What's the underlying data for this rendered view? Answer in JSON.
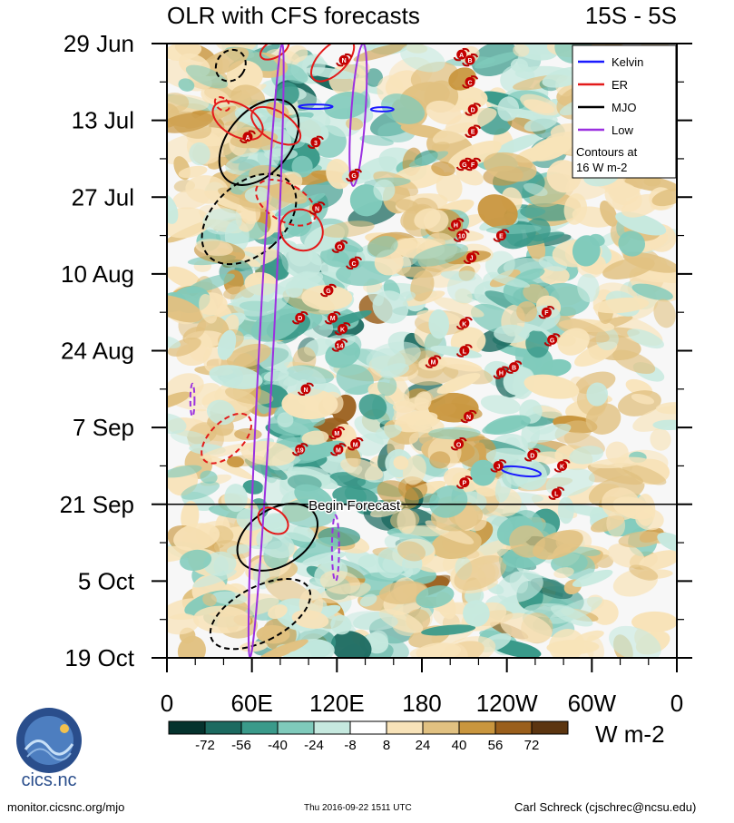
{
  "chart_data": {
    "type": "heatmap",
    "title": "OLR with CFS forecasts",
    "region": "15S - 5S",
    "xlabel": "",
    "ylabel": "",
    "x_ticks": [
      "0",
      "60E",
      "120E",
      "180",
      "120W",
      "60W",
      "0"
    ],
    "x_range_deg_east": [
      0,
      360
    ],
    "y_ticks": [
      "29 Jun",
      "13 Jul",
      "27 Jul",
      "10 Aug",
      "24 Aug",
      "7 Sep",
      "21 Sep",
      "5 Oct",
      "19 Oct"
    ],
    "y_range_days": [
      0,
      112
    ],
    "forecast_start": {
      "label": "Begin Forecast",
      "day": 84
    },
    "colorbar": {
      "unit": "W m-2",
      "tick_labels": [
        "-72",
        "-56",
        "-40",
        "-24",
        "-8",
        "8",
        "24",
        "40",
        "56",
        "72"
      ],
      "bins": [
        -80,
        -72,
        -56,
        -40,
        -24,
        -8,
        8,
        24,
        40,
        56,
        72,
        80
      ],
      "colors": [
        "#05332e",
        "#1c6a60",
        "#3a9a8a",
        "#7fcabb",
        "#c6e9df",
        "#ffffff",
        "#f8e3b9",
        "#e1c181",
        "#c9963e",
        "#9a5f1c",
        "#5c3510"
      ]
    },
    "legend": {
      "position": "top-right",
      "entries": [
        {
          "label": "Kelvin",
          "color": "#1a1aff"
        },
        {
          "label": "ER",
          "color": "#e31a1a"
        },
        {
          "label": "MJO",
          "color": "#000000"
        },
        {
          "label": "Low",
          "color": "#9b30e0"
        }
      ],
      "note_line1": "Contours at",
      "note_line2": "16 W m-2"
    },
    "wave_contours": [
      {
        "type": "MJO",
        "solid": true,
        "center_lon": 65,
        "center_day": 18,
        "rx": 22,
        "ry_days": 9,
        "angle": 40
      },
      {
        "type": "MJO",
        "solid": false,
        "center_lon": 58,
        "center_day": 32,
        "rx": 25,
        "ry_days": 10,
        "angle": 48
      },
      {
        "type": "MJO",
        "solid": false,
        "center_lon": 45,
        "center_day": 4,
        "rx": 10,
        "ry_days": 3,
        "angle": 35
      },
      {
        "type": "MJO",
        "solid": true,
        "center_lon": 78,
        "center_day": 90,
        "rx": 20,
        "ry_days": 8,
        "angle": 58
      },
      {
        "type": "MJO",
        "solid": false,
        "center_lon": 66,
        "center_day": 104,
        "rx": 19,
        "ry_days": 10,
        "angle": 62
      },
      {
        "type": "ER",
        "solid": true,
        "center_lon": 50,
        "center_day": 14,
        "rx": 11,
        "ry_days": 5,
        "angle": -60
      },
      {
        "type": "ER",
        "solid": true,
        "center_lon": 77,
        "center_day": 15,
        "rx": 10,
        "ry_days": 5,
        "angle": -58
      },
      {
        "type": "ER",
        "solid": false,
        "center_lon": 84,
        "center_day": 29,
        "rx": 13,
        "ry_days": 6,
        "angle": -60
      },
      {
        "type": "ER",
        "solid": true,
        "center_lon": 95,
        "center_day": 34,
        "rx": 14,
        "ry_days": 4,
        "angle": -55
      },
      {
        "type": "ER",
        "solid": true,
        "center_lon": 117,
        "center_day": 3,
        "rx": 19,
        "ry_days": 2.5,
        "angle": -45
      },
      {
        "type": "ER",
        "solid": true,
        "center_lon": 76,
        "center_day": 1,
        "rx": 11,
        "ry_days": 1.5,
        "angle": -30
      },
      {
        "type": "ER",
        "solid": false,
        "center_lon": 42,
        "center_day": 72,
        "rx": 22,
        "ry_days": 3,
        "angle": -45
      },
      {
        "type": "ER",
        "solid": true,
        "center_lon": 75,
        "center_day": 87,
        "rx": 8,
        "ry_days": 3,
        "angle": -55
      },
      {
        "type": "ER",
        "solid": false,
        "center_lon": 39,
        "center_day": 11,
        "rx": 4,
        "ry_days": 1.5,
        "angle": -50
      },
      {
        "type": "Low",
        "solid": true,
        "center_lon": 70,
        "center_day": 56,
        "rx": 5,
        "ry_days": 56,
        "angle": 3
      },
      {
        "type": "Low",
        "solid": true,
        "center_lon": 135,
        "center_day": 13,
        "rx": 5,
        "ry_days": 13,
        "angle": 4
      },
      {
        "type": "Low",
        "solid": false,
        "center_lon": 18,
        "center_day": 65,
        "rx": 1.5,
        "ry_days": 3,
        "angle": 0
      },
      {
        "type": "Low",
        "solid": false,
        "center_lon": 119,
        "center_day": 92,
        "rx": 2.5,
        "ry_days": 6,
        "angle": 0
      },
      {
        "type": "Kelvin",
        "solid": true,
        "center_lon": 250,
        "center_day": 78,
        "rx": 14,
        "ry_days": 0.8,
        "angle": 8
      },
      {
        "type": "Kelvin",
        "solid": true,
        "center_lon": 105,
        "center_day": 11.5,
        "rx": 12,
        "ry_days": 0.4,
        "angle": 0
      },
      {
        "type": "Kelvin",
        "solid": true,
        "center_lon": 152,
        "center_day": 12,
        "rx": 8,
        "ry_days": 0.4,
        "angle": 0
      }
    ],
    "storms": [
      {
        "label": "A",
        "lon": 208,
        "day": 2
      },
      {
        "label": "B",
        "lon": 214,
        "day": 3
      },
      {
        "label": "C",
        "lon": 214,
        "day": 7
      },
      {
        "label": "D",
        "lon": 216,
        "day": 12
      },
      {
        "label": "E",
        "lon": 216,
        "day": 16
      },
      {
        "label": "G",
        "lon": 210,
        "day": 22
      },
      {
        "label": "F",
        "lon": 216,
        "day": 22
      },
      {
        "label": "N",
        "lon": 125,
        "day": 3
      },
      {
        "label": "A",
        "lon": 57,
        "day": 17
      },
      {
        "label": "3",
        "lon": 105,
        "day": 18
      },
      {
        "label": "G",
        "lon": 132,
        "day": 24
      },
      {
        "label": "N",
        "lon": 106,
        "day": 30
      },
      {
        "label": "O",
        "lon": 122,
        "day": 37
      },
      {
        "label": "C",
        "lon": 132,
        "day": 40
      },
      {
        "label": "E",
        "lon": 236,
        "day": 35
      },
      {
        "label": "H",
        "lon": 204,
        "day": 33
      },
      {
        "label": "10",
        "lon": 208,
        "day": 35
      },
      {
        "label": "J",
        "lon": 215,
        "day": 39
      },
      {
        "label": "G",
        "lon": 114,
        "day": 45
      },
      {
        "label": "D",
        "lon": 94,
        "day": 50
      },
      {
        "label": "M",
        "lon": 117,
        "day": 50
      },
      {
        "label": "K",
        "lon": 124,
        "day": 52
      },
      {
        "label": "14",
        "lon": 122,
        "day": 55
      },
      {
        "label": "K",
        "lon": 210,
        "day": 51
      },
      {
        "label": "F",
        "lon": 268,
        "day": 49
      },
      {
        "label": "G",
        "lon": 272,
        "day": 54
      },
      {
        "label": "L",
        "lon": 210,
        "day": 56
      },
      {
        "label": "M",
        "lon": 188,
        "day": 58
      },
      {
        "label": "H",
        "lon": 236,
        "day": 60
      },
      {
        "label": "B",
        "lon": 245,
        "day": 59
      },
      {
        "label": "N",
        "lon": 98,
        "day": 63
      },
      {
        "label": "N",
        "lon": 213,
        "day": 68
      },
      {
        "label": "M",
        "lon": 120,
        "day": 71
      },
      {
        "label": "19",
        "lon": 94,
        "day": 74
      },
      {
        "label": "M",
        "lon": 121,
        "day": 74
      },
      {
        "label": "M",
        "lon": 133,
        "day": 73
      },
      {
        "label": "O",
        "lon": 206,
        "day": 73
      },
      {
        "label": "D",
        "lon": 258,
        "day": 75
      },
      {
        "label": "J",
        "lon": 234,
        "day": 77
      },
      {
        "label": "K",
        "lon": 279,
        "day": 77
      },
      {
        "label": "P",
        "lon": 210,
        "day": 80
      },
      {
        "label": "L",
        "lon": 275,
        "day": 82
      }
    ]
  },
  "footer": {
    "left": "monitor.cicsnc.org/mjo",
    "center": "Thu 2016-09-22 1511 UTC",
    "right": "Carl Schreck (cjschrec@ncsu.edu)",
    "logo_text": "cics.nc"
  }
}
